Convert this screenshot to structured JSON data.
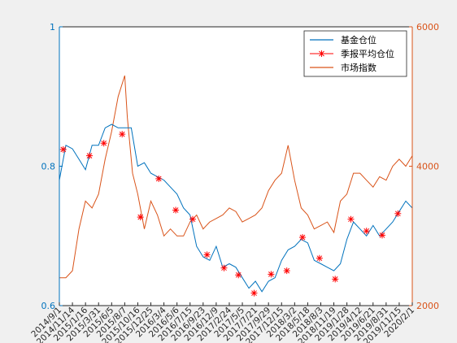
{
  "chart_data": {
    "type": "line",
    "title": "",
    "xlabel": "",
    "ylabel_left": "",
    "ylabel_right": "",
    "ylim_left": [
      0.6,
      1.0
    ],
    "ylim_right": [
      2000,
      6000
    ],
    "yticks_left": [
      "0.6",
      "0.8",
      "1"
    ],
    "yticks_right": [
      "2000",
      "4000",
      "6000"
    ],
    "legend": {
      "placement": "top-right",
      "entries": [
        "基金仓位",
        "季报平均仓位",
        "市场指数"
      ]
    },
    "colors": {
      "fund": "#0072bd",
      "quarterly": "#ff0000",
      "index": "#d95319",
      "axes_bg": "#ffffff",
      "figure_bg": "#f0f0f0"
    },
    "x_tick_labels": [
      "2014/9/1",
      "2014/11/14",
      "2015/1/16",
      "2015/3/31",
      "2015/6/5",
      "2015/8/7",
      "2015/10/16",
      "2015/12/25",
      "2016/3/4",
      "2016/5/6",
      "2016/7/15",
      "2016/9/23",
      "2016/12/9",
      "2017/2/24",
      "2017/5/5",
      "2017/7/21",
      "2017/9/29",
      "2017/12/15",
      "2018/3/2",
      "2018/5/18",
      "2018/8/3",
      "2018/11/19",
      "2019/1/28",
      "2019/4/12",
      "2019/6/21",
      "2019/8/31",
      "2019/11/15",
      "2020/2/1"
    ],
    "series": [
      {
        "name": "基金仓位",
        "axis": "left",
        "x": [
          0,
          0.5,
          1,
          1.5,
          2,
          2.5,
          3,
          3.5,
          4,
          4.5,
          5,
          5.5,
          6,
          6.5,
          7,
          7.5,
          8,
          8.5,
          9,
          9.5,
          10,
          10.5,
          11,
          11.5,
          12,
          12.5,
          13,
          13.5,
          14,
          14.5,
          15,
          15.5,
          16,
          16.5,
          17,
          17.5,
          18,
          18.5,
          19,
          19.5,
          20,
          20.5,
          21,
          21.5,
          22,
          22.5,
          23,
          23.5,
          24,
          24.5,
          25,
          25.5,
          26,
          26.5,
          27
        ],
        "values": [
          0.78,
          0.83,
          0.825,
          0.81,
          0.795,
          0.83,
          0.83,
          0.855,
          0.86,
          0.855,
          0.855,
          0.855,
          0.8,
          0.805,
          0.79,
          0.785,
          0.78,
          0.77,
          0.76,
          0.74,
          0.73,
          0.685,
          0.67,
          0.665,
          0.685,
          0.655,
          0.66,
          0.655,
          0.64,
          0.625,
          0.635,
          0.62,
          0.635,
          0.64,
          0.665,
          0.68,
          0.685,
          0.695,
          0.69,
          0.665,
          0.66,
          0.655,
          0.65,
          0.66,
          0.695,
          0.72,
          0.71,
          0.7,
          0.715,
          0.7,
          0.71,
          0.72,
          0.735,
          0.75,
          0.74
        ]
      },
      {
        "name": "季报平均仓位",
        "axis": "left",
        "x": [
          0.3,
          2.3,
          3.4,
          4.8,
          6.2,
          7.6,
          8.9,
          10.2,
          11.3,
          12.6,
          13.7,
          14.9,
          16.2,
          17.4,
          18.6,
          19.9,
          21.1,
          22.3,
          23.5,
          24.7,
          25.9
        ],
        "values": [
          0.824,
          0.815,
          0.833,
          0.846,
          0.727,
          0.782,
          0.737,
          0.724,
          0.673,
          0.654,
          0.644,
          0.618,
          0.645,
          0.65,
          0.698,
          0.668,
          0.638,
          0.724,
          0.707,
          0.701,
          0.732
        ]
      },
      {
        "name": "市场指数",
        "axis": "right",
        "x": [
          0,
          0.5,
          1,
          1.5,
          2,
          2.5,
          3,
          3.5,
          4,
          4.5,
          5,
          5.2,
          5.6,
          6,
          6.5,
          7,
          7.5,
          8,
          8.5,
          9,
          9.5,
          10,
          10.5,
          11,
          11.5,
          12,
          12.5,
          13,
          13.5,
          14,
          14.5,
          15,
          15.5,
          16,
          16.5,
          17,
          17.5,
          18,
          18.5,
          19,
          19.5,
          20,
          20.5,
          21,
          21.5,
          22,
          22.5,
          23,
          23.5,
          24,
          24.5,
          25,
          25.5,
          26,
          26.5,
          27
        ],
        "values": [
          2400,
          2400,
          2500,
          3100,
          3500,
          3400,
          3600,
          4100,
          4500,
          5000,
          5300,
          4700,
          3900,
          3600,
          3100,
          3500,
          3300,
          3000,
          3100,
          3000,
          3000,
          3200,
          3300,
          3100,
          3200,
          3250,
          3300,
          3400,
          3350,
          3200,
          3250,
          3300,
          3400,
          3650,
          3800,
          3900,
          4300,
          3800,
          3400,
          3300,
          3100,
          3150,
          3200,
          3050,
          3500,
          3600,
          3900,
          3900,
          3800,
          3700,
          3850,
          3800,
          4000,
          4100,
          4000,
          4150
        ]
      }
    ]
  }
}
